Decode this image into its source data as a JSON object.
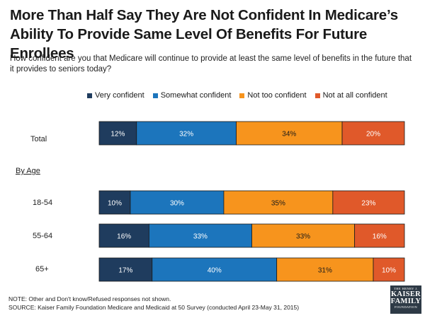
{
  "header": {
    "title": "More Than Half Say They Are Not Confident In Medicare’s Ability To Provide Same Level Of Benefits For Future Enrollees",
    "subtitle": "How confident are you that Medicare will continue to provide at least the same level of benefits in the future that it provides to seniors today?"
  },
  "section_label": "By Age",
  "footer": {
    "note": "NOTE: Other and Don't know/Refused responses not shown.",
    "source": "SOURCE: Kaiser Family Foundation Medicare and Medicaid at 50 Survey (conducted April 23-May 31, 2015)"
  },
  "logo": {
    "line1": "THE HENRY J.",
    "line2": "KAISER",
    "line3": "FAMILY",
    "line4": "FOUNDATION"
  },
  "chart_data": {
    "type": "bar",
    "orientation": "horizontal-stacked",
    "title": "More Than Half Say They Are Not Confident In Medicare’s Ability To Provide Same Level Of Benefits For Future Enrollees",
    "categories": [
      "Total",
      "18-54",
      "55-64",
      "65+"
    ],
    "series": [
      {
        "name": "Very confident",
        "color": "#1f3c5e",
        "values": [
          12,
          10,
          16,
          17
        ]
      },
      {
        "name": "Somewhat confident",
        "color": "#1c75bc",
        "values": [
          32,
          30,
          33,
          40
        ]
      },
      {
        "name": "Not too confident",
        "color": "#f7941d",
        "values": [
          34,
          35,
          33,
          31
        ]
      },
      {
        "name": "Not at all confident",
        "color": "#e0592a",
        "values": [
          20,
          23,
          16,
          10
        ]
      }
    ],
    "value_suffix": "%",
    "legend_position": "top",
    "grid": false
  }
}
